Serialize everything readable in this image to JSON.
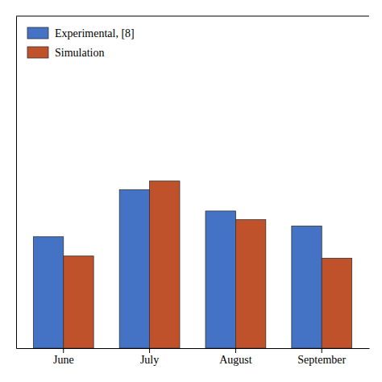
{
  "chart_data": {
    "type": "bar",
    "categories": [
      "June",
      "July",
      "August",
      "September"
    ],
    "series": [
      {
        "name": "Experimental, [8]",
        "color": "#4472C4",
        "values": [
          0.52,
          0.74,
          0.64,
          0.57
        ]
      },
      {
        "name": "Simulation",
        "color": "#C0522B",
        "values": [
          0.43,
          0.78,
          0.6,
          0.42
        ]
      }
    ],
    "ylim": [
      0,
      1.55
    ],
    "grid": false,
    "legend": "upper left",
    "tick_labels": "x"
  }
}
